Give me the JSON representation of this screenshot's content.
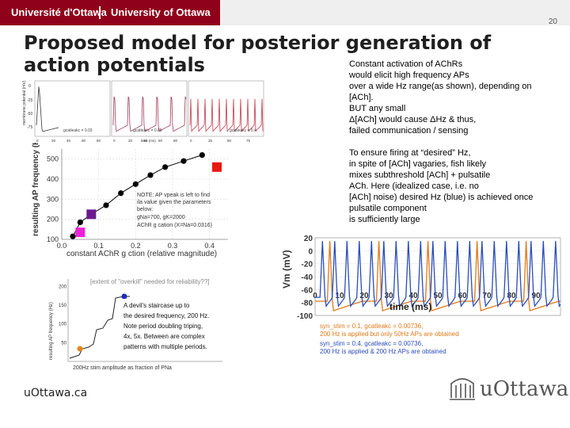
{
  "header": {
    "uni_fr": "Université d'Ottawa",
    "uni_en": "University of Ottawa",
    "page_number": "20"
  },
  "title": "Proposed model for posterior generation of action potentials",
  "note1": [
    "Constant  activation of  AChRs",
    "would elicit high frequency APs",
    "over a wide Hz range(as shown), depending on",
    "[ACh].",
    "BUT any small",
    "Δ[ACh] would  cause ΔHz & thus,",
    " failed communication / sensing"
  ],
  "note2": [
    "To ensure firing at  “desired” Hz,",
    "in spite of [ACh] vagaries,  fish likely",
    "mixes subthreshold [ACh] + pulsatile",
    "ACh.  Here (idealized case, i.e. no",
    "[ACh] noise) desired Hz (blue) is achieved  once",
    "pulsatile component",
    "is sufficiently large"
  ],
  "fig_top": {
    "ylabel": "membrane potential (mV)",
    "ticks_y": [
      "0",
      "-25",
      "-50",
      "-75"
    ],
    "panels": [
      "gcatleakc = 0.03",
      "gcatleakc = 0.05",
      "gcatleakc = 0.4"
    ],
    "xlabel": "time (ms)",
    "ticks_x": [
      "0",
      "20",
      "40",
      "60",
      "80",
      "0",
      "20",
      "40",
      "60",
      "80",
      "0",
      "25",
      "50",
      "75"
    ]
  },
  "chart_data": [
    {
      "type": "scatter",
      "title": "",
      "xlabel": "constant AChR g ction (relative magnitude)",
      "ylabel": "resulting AP frequency (Hz)",
      "xlim": [
        0,
        0.45
      ],
      "ylim": [
        100,
        550
      ],
      "x_ticks": [
        "0.0",
        "0.1",
        "0.2",
        "0.3",
        "0.4"
      ],
      "y_ticks": [
        "100",
        "200",
        "300",
        "400",
        "500"
      ],
      "series": [
        {
          "x": [
            0.03,
            0.05,
            0.08,
            0.12,
            0.16,
            0.2,
            0.24,
            0.28,
            0.33,
            0.38
          ],
          "y": [
            115,
            185,
            225,
            270,
            330,
            375,
            420,
            460,
            490,
            520
          ]
        }
      ],
      "markers": [
        {
          "x": 0.42,
          "y": 460,
          "color": "#e8190f"
        },
        {
          "x": 0.08,
          "y": 225,
          "color": "#6a1a8c"
        },
        {
          "x": 0.05,
          "y": 135,
          "color": "#ee22d6"
        }
      ],
      "annotation": [
        "NOTE: AP vpeak is left to find",
        "ila value given the parameters",
        "below:",
        "gNa=700, gK=2000",
        "AChR g cation (X=Na=0.0316)"
      ]
    },
    {
      "type": "line",
      "title": "",
      "xlabel": "time (ms)",
      "ylabel": "Vm (mV)",
      "xlim": [
        0,
        100
      ],
      "ylim": [
        -100,
        20
      ],
      "x_ticks": [
        "0",
        "10",
        "20",
        "30",
        "40",
        "50",
        "60",
        "70",
        "80",
        "90"
      ],
      "y_ticks": [
        "20",
        "0",
        "-20",
        "-40",
        "-60",
        "-80",
        "-100"
      ],
      "legend": [
        {
          "text": "syn_stim = 0.1, gcatleakc = 0.00736,",
          "color": "#e07a1a"
        },
        {
          "text": "200 Hz is applied but only 50Hz APs are obtained",
          "color": "#e07a1a"
        },
        {
          "text": "syn_stim = 0.4, gcatleakc = 0.00736,",
          "color": "#2a4dbb"
        },
        {
          "text": "200 Hz is applied & 200 Hz APs are obtained",
          "color": "#2a4dbb"
        }
      ]
    },
    {
      "type": "line",
      "title": "",
      "xlabel": "200Hz stim amplitude as fraction of PNa",
      "ylabel": "resulting AP frequency (Hz)",
      "y_ticks": [
        "200",
        "150",
        "100",
        "50"
      ],
      "annotation_top": "[extent of \"overkill\" needed for reliability??]",
      "annotation_box": [
        "A devil's staircase up to",
        "the desired frequency, 200 Hz.",
        "Note period doubling triping,",
        "4x, 5x. Between are complex",
        "patterns with multiple periods."
      ]
    }
  ],
  "footer": {
    "left": "uOttawa.ca",
    "logo_text": "uOttawa"
  },
  "colors": {
    "header_band": "#8f001a",
    "header_grey": "#efefef",
    "blue_trace": "#2a4dbb",
    "orange_trace": "#e07a1a"
  }
}
